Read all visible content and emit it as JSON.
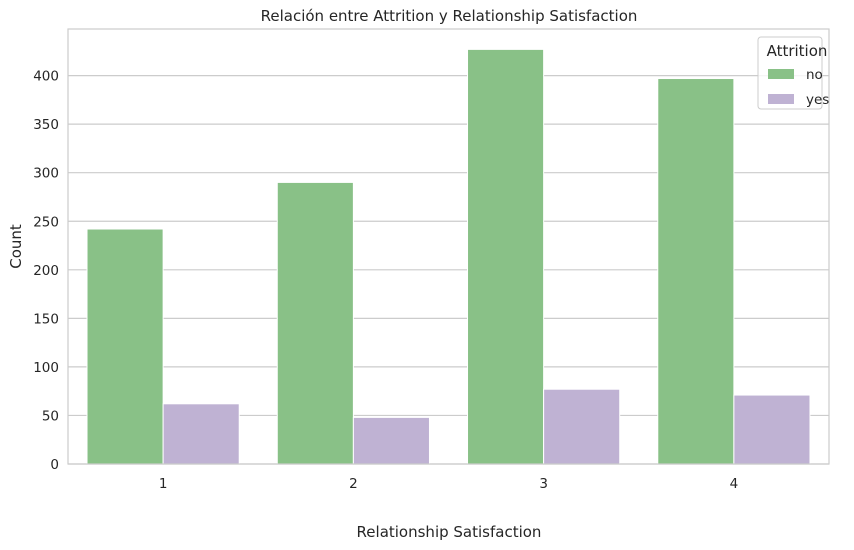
{
  "chart_data": {
    "type": "bar",
    "title": "Relación entre Attrition y Relationship Satisfaction",
    "xlabel": "Relationship Satisfaction",
    "ylabel": "Count",
    "categories": [
      "1",
      "2",
      "3",
      "4"
    ],
    "series": [
      {
        "name": "no",
        "values": [
          242,
          290,
          427,
          397
        ],
        "color": "#89c187"
      },
      {
        "name": "yes",
        "values": [
          62,
          48,
          77,
          71
        ],
        "color": "#bfb2d3"
      }
    ],
    "ylim": [
      0,
      448
    ],
    "yticks": [
      0,
      50,
      100,
      150,
      200,
      250,
      300,
      350,
      400
    ],
    "grid": true,
    "legend": {
      "title": "Attrition",
      "placement": "top-right"
    }
  }
}
